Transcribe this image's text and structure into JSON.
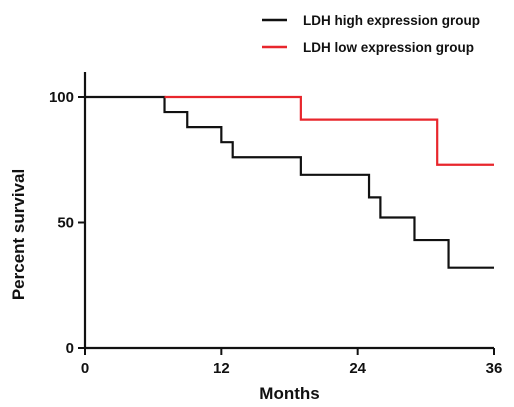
{
  "chart_data": {
    "type": "line",
    "subtype": "kaplan-meier-step",
    "xlabel": "Months",
    "ylabel": "Percent survival",
    "xlim": [
      0,
      36
    ],
    "ylim": [
      0,
      100
    ],
    "xticks": [
      0,
      12,
      24,
      36
    ],
    "yticks": [
      0,
      50,
      100
    ],
    "grid": false,
    "legend_position": "top-right",
    "series": [
      {
        "name": "LDH high expression group",
        "color": "#111111",
        "x": [
          0,
          7,
          9,
          12,
          13,
          19,
          25,
          25.5,
          26,
          29,
          32,
          36
        ],
        "y": [
          100,
          94,
          88,
          82,
          76,
          69,
          60,
          60,
          52,
          43,
          32,
          32
        ]
      },
      {
        "name": "LDH low expression group",
        "color": "#e8262c",
        "x": [
          7,
          19,
          31,
          36
        ],
        "y": [
          100,
          91,
          73,
          73
        ]
      }
    ]
  }
}
